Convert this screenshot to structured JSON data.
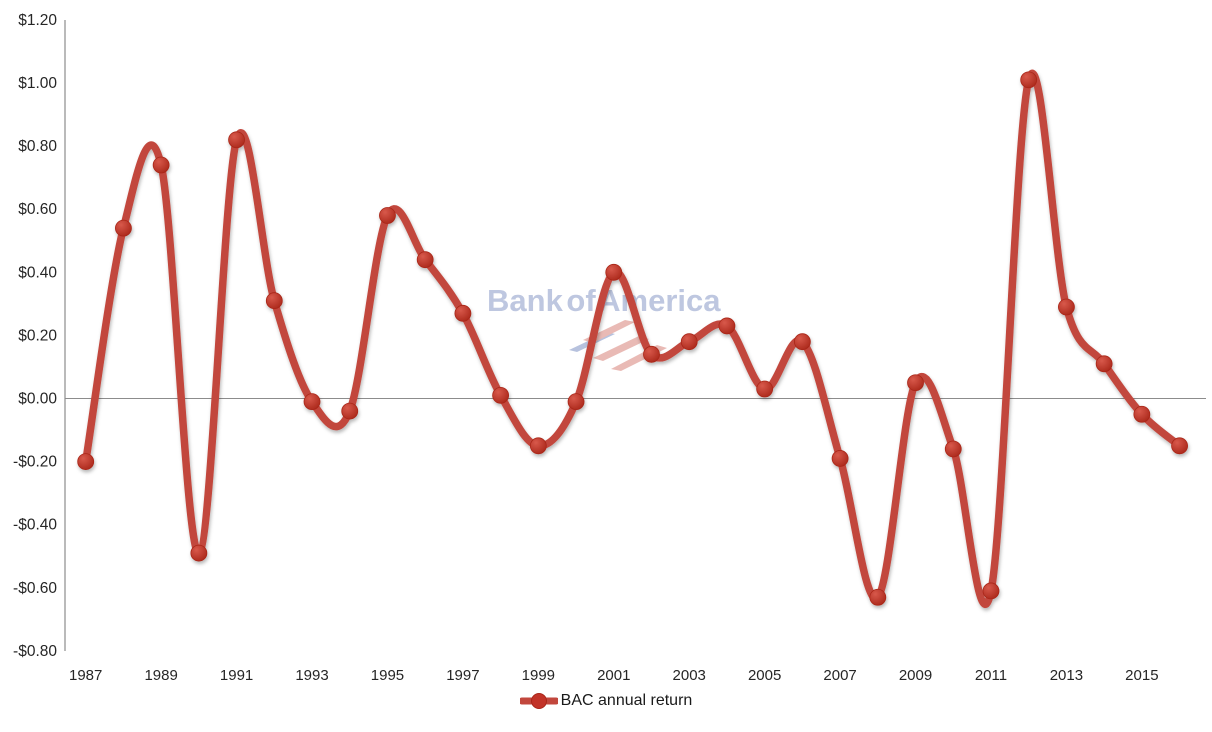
{
  "chart_data": {
    "type": "line",
    "title": "",
    "xlabel": "",
    "ylabel": "",
    "series": [
      {
        "name": "BAC annual return",
        "x": [
          1987,
          1988,
          1989,
          1990,
          1991,
          1992,
          1993,
          1994,
          1995,
          1996,
          1997,
          1998,
          1999,
          2000,
          2001,
          2002,
          2003,
          2004,
          2005,
          2006,
          2007,
          2008,
          2009,
          2010,
          2011,
          2012,
          2013,
          2014,
          2015,
          2016
        ],
        "values": [
          -0.2,
          0.54,
          0.74,
          -0.49,
          0.82,
          0.31,
          -0.01,
          -0.04,
          0.58,
          0.44,
          0.27,
          0.01,
          -0.15,
          -0.01,
          0.4,
          0.14,
          0.18,
          0.23,
          0.03,
          0.18,
          -0.19,
          -0.63,
          0.05,
          -0.16,
          -0.61,
          1.01,
          0.29,
          0.11,
          -0.05,
          -0.15
        ]
      }
    ],
    "ylim": [
      -0.8,
      1.2
    ],
    "ytick_values": [
      1.2,
      1.0,
      0.8,
      0.6,
      0.4,
      0.2,
      0.0,
      -0.2,
      -0.4,
      -0.6,
      -0.8
    ],
    "ytick_labels": [
      "$1.20",
      "$1.00",
      "$0.80",
      "$0.60",
      "$0.40",
      "$0.20",
      "$0.00",
      "-$0.20",
      "-$0.40",
      "-$0.60",
      "-$0.80"
    ],
    "xtick_values": [
      1987,
      1989,
      1991,
      1993,
      1995,
      1997,
      1999,
      2001,
      2003,
      2005,
      2007,
      2009,
      2011,
      2013,
      2015
    ],
    "xtick_labels": [
      "1987",
      "1989",
      "1991",
      "1993",
      "1995",
      "1997",
      "1999",
      "2001",
      "2003",
      "2005",
      "2007",
      "2009",
      "2011",
      "2013",
      "2015"
    ],
    "grid": "zero-line-only",
    "line_style": "smooth-with-markers",
    "legend_position": "bottom-center",
    "value_format": "dollars"
  },
  "legend": {
    "label": "BAC annual return"
  },
  "watermark": {
    "text": "Bank of America",
    "flag_icon": "bank-of-america-flag-icon"
  },
  "colors": {
    "line": "#C2473D",
    "marker": "#C23328",
    "marker_highlight": "#D8594B",
    "marker_dark": "#A92619",
    "axis": "#8C8C8C",
    "zero_line": "#8C8C8C",
    "tick_text": "#262626",
    "legend_text": "#1A1A1A",
    "watermark_text": "#B7C1DD",
    "watermark_flag_red": "#E2A49D",
    "watermark_flag_blue": "#9FAED4",
    "background": "#FFFFFF"
  }
}
